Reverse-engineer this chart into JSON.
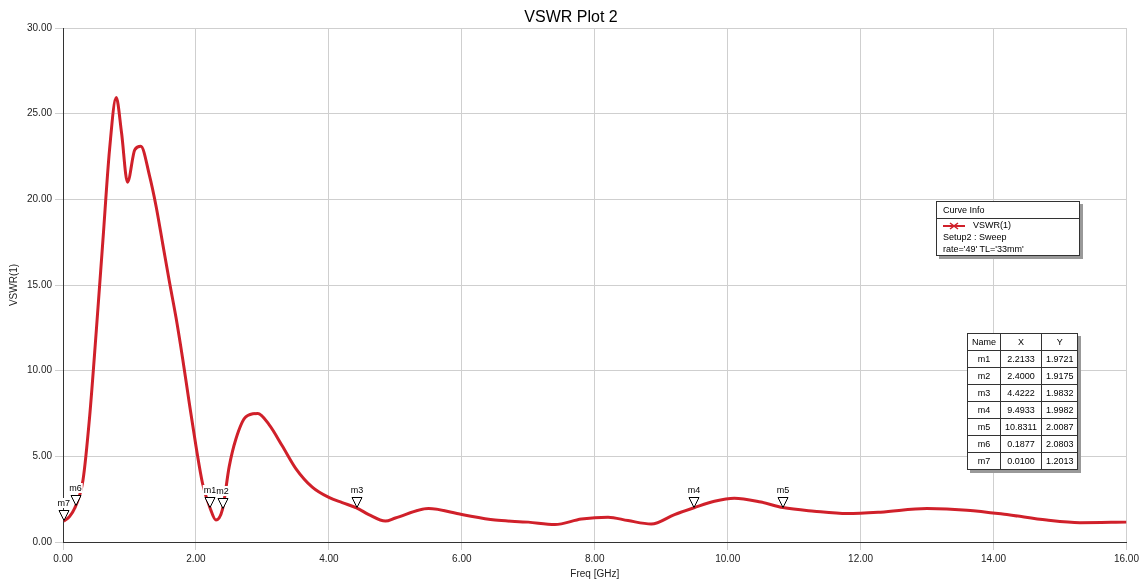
{
  "chart_data": {
    "type": "line",
    "title": "VSWR Plot 2",
    "xlabel": "Freq [GHz]",
    "ylabel": "VSWR(1)",
    "legend_title": "Curve Info",
    "legend": "right",
    "grid": true,
    "marker": "none",
    "line_style": "solid",
    "xlim": [
      0,
      16
    ],
    "xticks": [
      {
        "value": 0,
        "label": "0.00"
      },
      {
        "value": 2,
        "label": "2.00"
      },
      {
        "value": 4,
        "label": "4.00"
      },
      {
        "value": 6,
        "label": "6.00"
      },
      {
        "value": 8,
        "label": "8.00"
      },
      {
        "value": 10,
        "label": "10.00"
      },
      {
        "value": 12,
        "label": "12.00"
      },
      {
        "value": 14,
        "label": "14.00"
      },
      {
        "value": 16,
        "label": "16.00"
      }
    ],
    "ylim": [
      0,
      30
    ],
    "yticks": [
      {
        "value": 0,
        "label": "0.00"
      },
      {
        "value": 5,
        "label": "5.00"
      },
      {
        "value": 10,
        "label": "10.00"
      },
      {
        "value": 15,
        "label": "15.00"
      },
      {
        "value": 20,
        "label": "20.00"
      },
      {
        "value": 25,
        "label": "25.00"
      },
      {
        "value": 30,
        "label": "30.00"
      }
    ],
    "x": [
      0.01,
      0.1,
      0.1877,
      0.3,
      0.4,
      0.5,
      0.6,
      0.7,
      0.8,
      0.88,
      0.97,
      1.08,
      1.17,
      1.3,
      1.4,
      1.5,
      1.6,
      1.7,
      1.8,
      1.9,
      2.0,
      2.1,
      2.2133,
      2.3,
      2.4,
      2.5,
      2.6,
      2.75,
      2.93,
      3.1,
      3.3,
      3.5,
      3.75,
      4.0,
      4.2,
      4.4222,
      4.6,
      4.85,
      5.0,
      5.5,
      6.0,
      6.5,
      7.0,
      7.4,
      7.8,
      8.2,
      8.5,
      8.85,
      9.2,
      9.4933,
      9.8,
      10.1,
      10.5,
      10.8311,
      11.3,
      11.8,
      12.3,
      13.0,
      13.6,
      14.2,
      14.8,
      15.3,
      16.0
    ],
    "series": [
      {
        "name": "VSWR(1)",
        "color": "#d0202a",
        "values": [
          1.2013,
          1.5,
          2.0803,
          3.6,
          7.3,
          12.3,
          17.6,
          22.9,
          25.95,
          23.9,
          21.0,
          22.9,
          23.1,
          21.4,
          19.6,
          17.4,
          15.2,
          13.1,
          10.7,
          8.1,
          5.6,
          3.4,
          1.9721,
          1.28,
          1.9175,
          4.4,
          6.0,
          7.3,
          7.5,
          6.85,
          5.6,
          4.3,
          3.2,
          2.6,
          2.3,
          1.9832,
          1.6,
          1.22,
          1.4,
          1.95,
          1.6,
          1.28,
          1.16,
          1.02,
          1.34,
          1.45,
          1.25,
          1.05,
          1.6,
          1.9982,
          2.38,
          2.56,
          2.33,
          2.0087,
          1.8,
          1.66,
          1.74,
          1.95,
          1.86,
          1.6,
          1.28,
          1.13,
          1.16
        ]
      }
    ],
    "annotations": [
      "Setup2 : Sweep",
      "rate='49' TL='33mm'",
      "Name",
      "X",
      "Y",
      "2.2133",
      "1.9721",
      "2.4000",
      "1.9175",
      "4.4222",
      "1.9832",
      "9.4933",
      "1.9982",
      "10.8311",
      "2.0087",
      "0.1877",
      "2.0803",
      "0.0100",
      "1.2013",
      {
        "text": "m1",
        "x": 2.2133,
        "y": 1.9721
      },
      {
        "text": "m2",
        "x": 2.4,
        "y": 1.9175
      },
      {
        "text": "m3",
        "x": 4.4222,
        "y": 1.9832
      },
      {
        "text": "m4",
        "x": 9.4933,
        "y": 1.9982
      },
      {
        "text": "m5",
        "x": 10.8311,
        "y": 2.0087
      },
      {
        "text": "m6",
        "x": 0.1877,
        "y": 2.0803
      },
      {
        "text": "m7",
        "x": 0.01,
        "y": 1.2013
      }
    ]
  }
}
